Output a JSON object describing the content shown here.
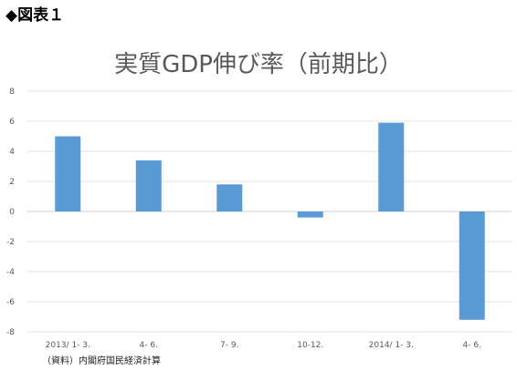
{
  "figure_label": "◆図表１",
  "source_note": "（資料）内閣府国民経済計算",
  "chart_data": {
    "type": "bar",
    "title": "実質GDP伸び率（前期比）",
    "xlabel": "",
    "ylabel": "",
    "categories": [
      "2013/ 1- 3.",
      "4- 6.",
      "7- 9.",
      "10-12.",
      "2014/ 1- 3.",
      "4- 6."
    ],
    "values": [
      5.0,
      3.4,
      1.8,
      -0.4,
      5.9,
      -7.2
    ],
    "ylim": [
      -8,
      8
    ],
    "yticks": [
      8,
      6,
      4,
      2,
      0,
      -2,
      -4,
      -6,
      -8
    ],
    "ytick_labels": [
      "8",
      "6",
      "4",
      "2",
      "0",
      "-2",
      "-4",
      "-6",
      "-8"
    ],
    "bar_color": "#5b9bd5",
    "grid": true,
    "legend": "none"
  }
}
